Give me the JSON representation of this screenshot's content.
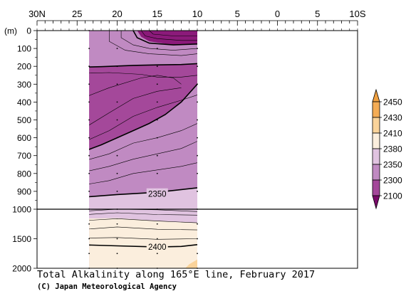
{
  "chart_data": {
    "type": "heatmap",
    "title": "Total Alkalinity along 165°E line, February 2017",
    "credit": "(C) Japan Meteorological Agency",
    "x_ticks": [
      "30N",
      "25",
      "20",
      "15",
      "10",
      "5",
      "0",
      "5",
      "10S"
    ],
    "x_tick_lat": [
      30,
      25,
      20,
      15,
      10,
      5,
      0,
      -5,
      -10
    ],
    "x_range": [
      30,
      -10
    ],
    "data_lat_range": [
      23.5,
      10
    ],
    "y_ticks": [
      "0",
      "100",
      "200",
      "300",
      "400",
      "500",
      "600",
      "700",
      "800",
      "900",
      "1000",
      "1500",
      "2000"
    ],
    "y_tick_depth": [
      0,
      100,
      200,
      300,
      400,
      500,
      600,
      700,
      800,
      900,
      1000,
      1500,
      2000
    ],
    "y_unit": "(m)",
    "y_break": 1000,
    "station_lat": [
      23.5,
      20,
      15,
      10
    ],
    "contour_labels": [
      {
        "text": "2350",
        "lat": 15,
        "depth": 915
      },
      {
        "text": "2400",
        "lat": 15,
        "depth": 1640
      }
    ],
    "colorbar": {
      "levels": [
        "2100",
        "2300",
        "2350",
        "2380",
        "2410",
        "2430",
        "2450"
      ],
      "colors": [
        "#8b1a7a",
        "#a4489a",
        "#c08ac2",
        "#e0c3e0",
        "#fbeedd",
        "#fad39a",
        "#f4ac55"
      ]
    }
  }
}
